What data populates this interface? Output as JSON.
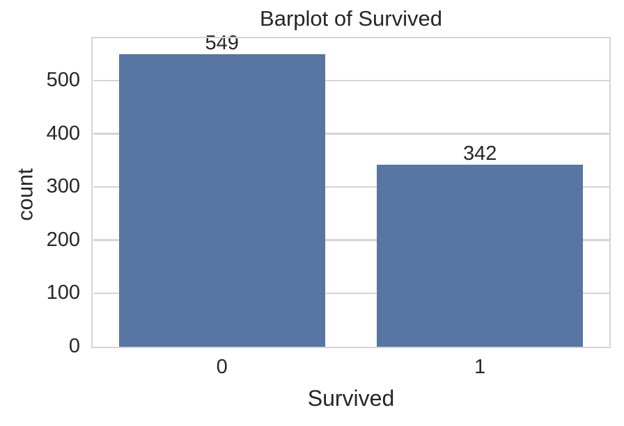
{
  "chart_data": {
    "type": "bar",
    "title": "Barplot of Survived",
    "xlabel": "Survived",
    "ylabel": "count",
    "categories": [
      "0",
      "1"
    ],
    "values": [
      549,
      342
    ],
    "bar_value_labels": [
      "549",
      "342"
    ],
    "yticks": [
      0,
      100,
      200,
      300,
      400,
      500
    ],
    "ylim": [
      0,
      579
    ],
    "bar_relative_width": 0.8,
    "grid": true,
    "grid_axis": "y",
    "legend": false,
    "bar_color": "#5975a4",
    "grid_color": "#d5d5d5",
    "text_color": "#262626",
    "background_color": "#ffffff"
  }
}
